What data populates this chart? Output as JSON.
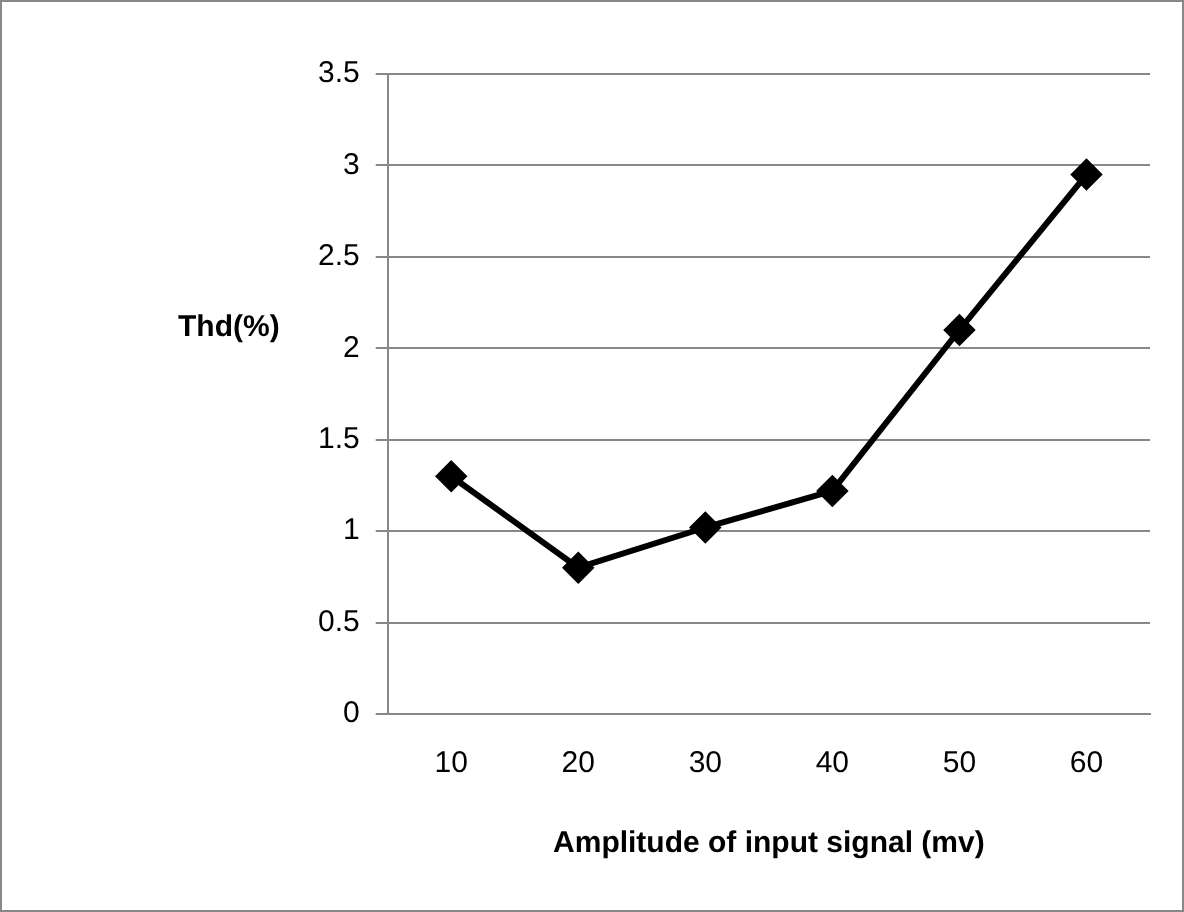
{
  "chart_data": {
    "type": "line",
    "xlabel": "Amplitude of input signal (mv)",
    "ylabel": "Thd(%)",
    "categories": [
      "10",
      "20",
      "30",
      "40",
      "50",
      "60"
    ],
    "series": [
      {
        "color": "#000000",
        "values": [
          1.3,
          0.8,
          1.02,
          1.22,
          2.1,
          2.95
        ]
      }
    ],
    "ylim": [
      0,
      3.5
    ],
    "yticks": [
      0,
      0.5,
      1,
      1.5,
      2,
      2.5,
      3,
      3.5
    ],
    "grid": "y",
    "legend": false,
    "marker": "diamond",
    "line_style": "solid"
  }
}
